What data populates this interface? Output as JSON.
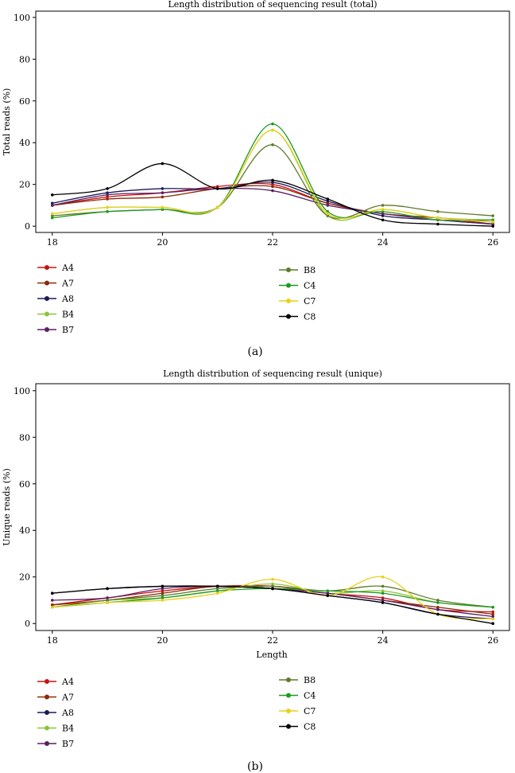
{
  "legend_colors": {
    "A4": "#cc1010",
    "A7": "#8a2a08",
    "A8": "#1a1a5c",
    "B4": "#8cc43a",
    "B7": "#5a1e62",
    "B8": "#5e7a2a",
    "C4": "#1f9a22",
    "C7": "#e8d11a",
    "C8": "#000000"
  },
  "chart_data": [
    {
      "type": "line",
      "title": "Length distribution of sequencing result (total)",
      "xlabel": "",
      "ylabel": "Total reads (%)",
      "caption": "(a)",
      "x": [
        18,
        19,
        20,
        21,
        22,
        23,
        24,
        25,
        26
      ],
      "xticks": [
        18,
        20,
        22,
        24,
        26
      ],
      "xlim": [
        17.7,
        26.3
      ],
      "yticks": [
        0,
        20,
        40,
        60,
        80,
        100
      ],
      "ylim": [
        -3,
        103
      ],
      "legend_left": [
        "A4",
        "A7",
        "A8",
        "B4",
        "B7"
      ],
      "legend_right": [
        "B8",
        "C4",
        "C7",
        "C8"
      ],
      "series": [
        {
          "name": "A4",
          "values": [
            10,
            14,
            16,
            19,
            20,
            11,
            6,
            4,
            2
          ]
        },
        {
          "name": "A7",
          "values": [
            10,
            13,
            14,
            18,
            19,
            11,
            6,
            4,
            1
          ]
        },
        {
          "name": "A8",
          "values": [
            11,
            16,
            18,
            18,
            21,
            12,
            5,
            3,
            1
          ]
        },
        {
          "name": "B4",
          "values": [
            6,
            9,
            9,
            9,
            46,
            5,
            8,
            4,
            3
          ]
        },
        {
          "name": "B7",
          "values": [
            10,
            15,
            16,
            18,
            17,
            10,
            6,
            3,
            1
          ]
        },
        {
          "name": "B8",
          "values": [
            5,
            7,
            8,
            9,
            39,
            5,
            10,
            7,
            5
          ]
        },
        {
          "name": "C4",
          "values": [
            4,
            7,
            8,
            9,
            49,
            7,
            7,
            3,
            3
          ]
        },
        {
          "name": "C7",
          "values": [
            6,
            9,
            9,
            9,
            46,
            6,
            8,
            4,
            2
          ]
        },
        {
          "name": "C8",
          "values": [
            15,
            18,
            30,
            18,
            22,
            13,
            3,
            1,
            0
          ]
        }
      ]
    },
    {
      "type": "line",
      "title": "Length distribution of sequencing result (unique)",
      "xlabel": "Length",
      "ylabel": "Unique reads (%)",
      "caption": "(b)",
      "x": [
        18,
        19,
        20,
        21,
        22,
        23,
        24,
        25,
        26
      ],
      "xticks": [
        18,
        20,
        22,
        24,
        26
      ],
      "xlim": [
        17.7,
        26.3
      ],
      "yticks": [
        0,
        20,
        40,
        60,
        80,
        100
      ],
      "ylim": [
        -3,
        103
      ],
      "legend_left": [
        "A4",
        "A7",
        "A8",
        "B4",
        "B7"
      ],
      "legend_right": [
        "B8",
        "C4",
        "C7",
        "C8"
      ],
      "series": [
        {
          "name": "A4",
          "values": [
            8,
            11,
            14,
            16,
            16,
            13,
            11,
            6,
            5
          ]
        },
        {
          "name": "A7",
          "values": [
            8,
            10,
            13,
            16,
            15,
            13,
            10,
            7,
            4
          ]
        },
        {
          "name": "A8",
          "values": [
            13,
            15,
            16,
            16,
            15,
            12,
            9,
            4,
            2
          ]
        },
        {
          "name": "B4",
          "values": [
            7,
            10,
            11,
            14,
            17,
            13,
            14,
            9,
            7
          ]
        },
        {
          "name": "B7",
          "values": [
            10,
            11,
            15,
            16,
            15,
            13,
            10,
            6,
            3
          ]
        },
        {
          "name": "B8",
          "values": [
            7,
            10,
            12,
            15,
            16,
            14,
            16,
            10,
            7
          ]
        },
        {
          "name": "C4",
          "values": [
            7,
            9,
            11,
            14,
            15,
            14,
            13,
            9,
            7
          ]
        },
        {
          "name": "C7",
          "values": [
            7,
            9,
            10,
            13,
            19,
            12,
            20,
            4,
            2
          ]
        },
        {
          "name": "C8",
          "values": [
            13,
            15,
            16,
            16,
            15,
            12,
            9,
            4,
            0
          ]
        }
      ]
    }
  ]
}
